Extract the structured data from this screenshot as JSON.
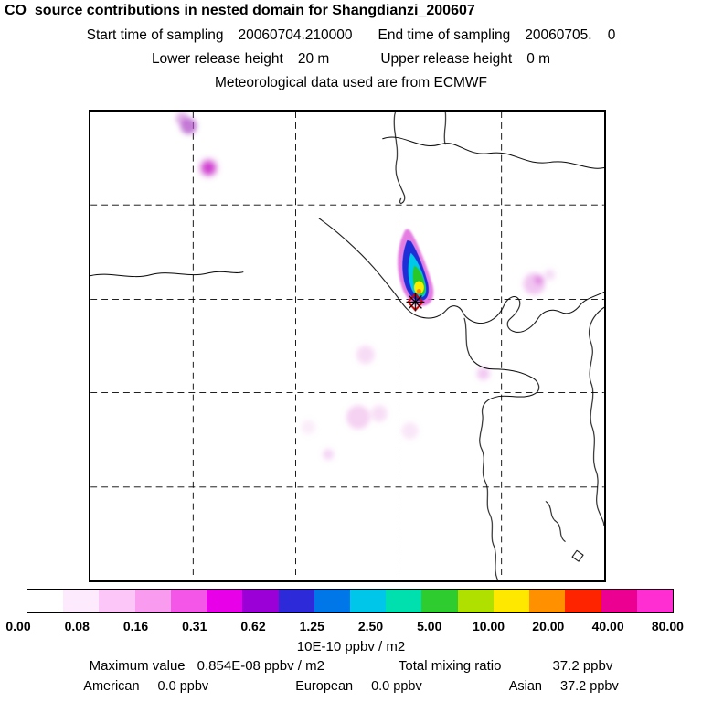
{
  "header": {
    "title": "CO  source contributions in nested domain for Shangdianzi_200607",
    "start_label": "Start time of sampling",
    "start_value": "20060704.210000",
    "end_label": "End time of sampling",
    "end_value": "20060705.    0",
    "lower_label": "Lower release height",
    "lower_value": "20 m",
    "upper_label": "Upper release height",
    "upper_value": "0 m",
    "met_line": "Meteorological data used are from ECMWF"
  },
  "colorbar": {
    "colors": [
      "#ffffff",
      "#feeafd",
      "#fcc6f8",
      "#f99cf0",
      "#f457e7",
      "#e800e8",
      "#9b00d6",
      "#2d2ada",
      "#0077e8",
      "#00c6ea",
      "#00dfae",
      "#2ecc2e",
      "#b0e000",
      "#ffe800",
      "#ff9000",
      "#ff2400",
      "#ec0092",
      "#ff2ed2"
    ],
    "ticks": [
      "0.00",
      "0.08",
      "0.16",
      "0.31",
      "0.62",
      "1.25",
      "2.50",
      "5.00",
      "10.00",
      "20.00",
      "40.00",
      "80.00"
    ],
    "units": "10E-10 ppbv / m2"
  },
  "stats": {
    "maximum_label": "Maximum value",
    "maximum_value": "0.854E-08 ppbv / m2",
    "total_label": "Total mixing ratio",
    "total_value": "37.2 ppbv",
    "regions": [
      {
        "name": "American",
        "value": "0.0 ppbv"
      },
      {
        "name": "European",
        "value": "0.0 ppbv"
      },
      {
        "name": "Asian",
        "value": "37.2 ppbv"
      }
    ]
  },
  "chart_data": {
    "type": "heatmap",
    "title": "CO  source contributions in nested domain for Shangdianzi_200607",
    "receptor": "Shangdianzi_200607",
    "sampling_start": "20060704.210000",
    "sampling_end": "20060705.    0",
    "lower_release_height_m": 20,
    "upper_release_height_m": 0,
    "meteorological_data": "ECMWF",
    "colorbar_levels": [
      0.0,
      0.08,
      0.16,
      0.31,
      0.62,
      1.25,
      2.5,
      5.0,
      10.0,
      20.0,
      40.0,
      80.0
    ],
    "colorbar_units": "10E-10 ppbv / m2",
    "maximum_value": "0.854E-08 ppbv / m2",
    "total_mixing_ratio_ppbv": 37.2,
    "contributions_ppbv": {
      "American": 0.0,
      "European": 0.0,
      "Asian": 37.2
    },
    "grid": "5x5 dashed graticule over coastline map, plume maximum at receptor marker",
    "legend_position": "horizontal colorbar below map"
  }
}
